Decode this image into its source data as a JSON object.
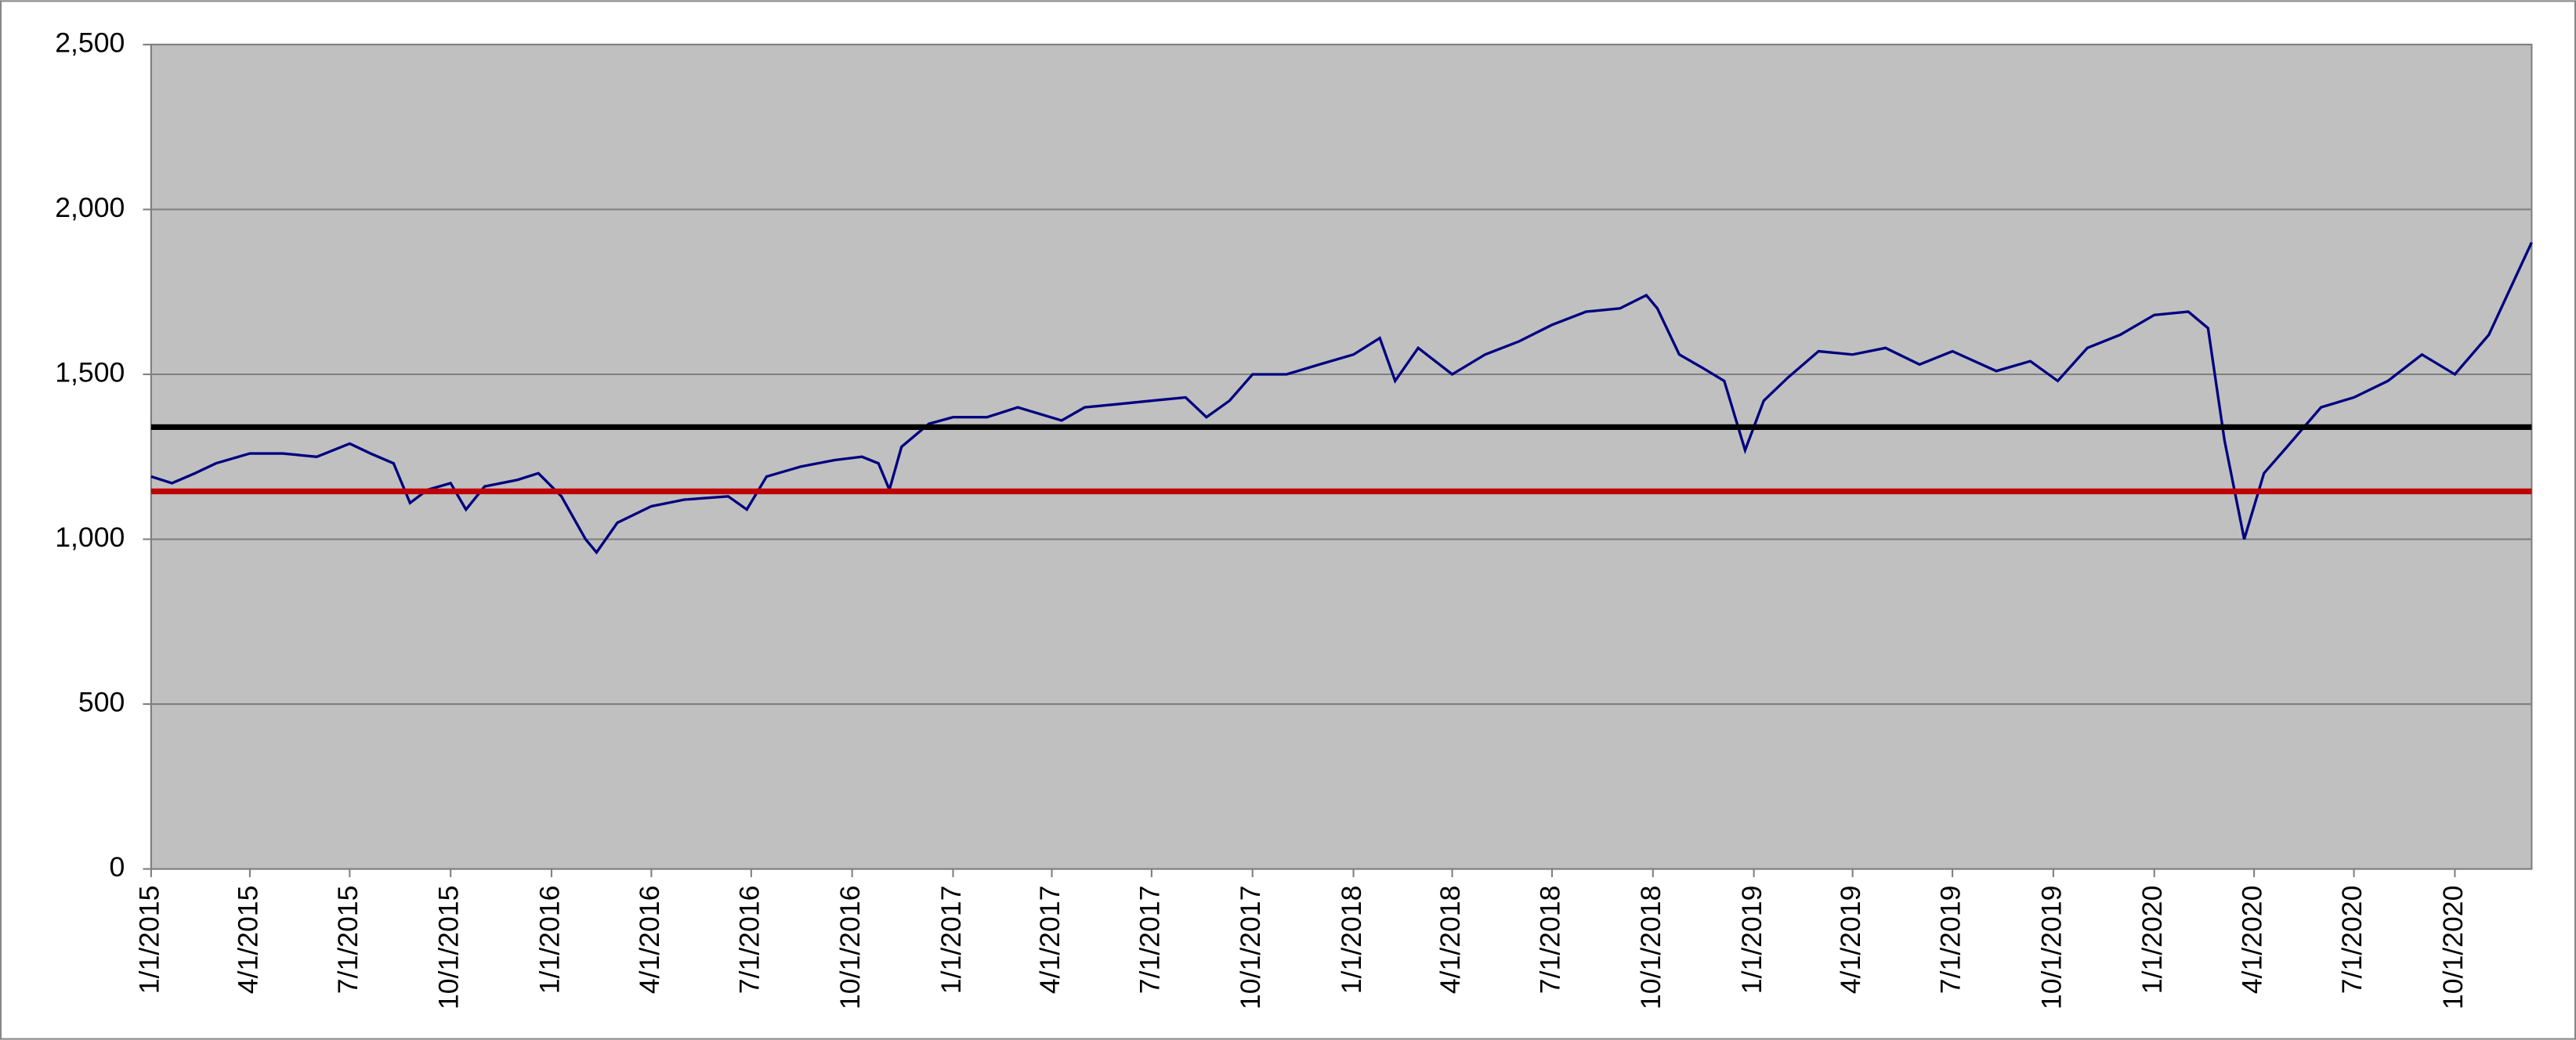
{
  "chart_data": {
    "type": "line",
    "x": [
      "1/1/2015",
      "1/20/2015",
      "2/10/2015",
      "3/1/2015",
      "4/1/2015",
      "5/1/2015",
      "6/1/2015",
      "7/1/2015",
      "7/20/2015",
      "8/10/2015",
      "8/25/2015",
      "9/10/2015",
      "10/1/2015",
      "10/15/2015",
      "11/1/2015",
      "12/1/2015",
      "12/20/2015",
      "1/10/2016",
      "2/1/2016",
      "2/11/2016",
      "3/1/2016",
      "4/1/2016",
      "5/1/2016",
      "6/10/2016",
      "6/27/2016",
      "7/15/2016",
      "8/15/2016",
      "9/15/2016",
      "10/10/2016",
      "10/25/2016",
      "11/4/2016",
      "11/15/2016",
      "12/10/2016",
      "1/1/2017",
      "2/1/2017",
      "3/1/2017",
      "4/10/2017",
      "5/1/2017",
      "6/1/2017",
      "7/1/2017",
      "8/1/2017",
      "8/20/2017",
      "9/10/2017",
      "10/1/2017",
      "11/1/2017",
      "12/1/2017",
      "1/1/2018",
      "1/25/2018",
      "2/8/2018",
      "3/1/2018",
      "4/1/2018",
      "5/1/2018",
      "6/1/2018",
      "7/1/2018",
      "8/1/2018",
      "9/1/2018",
      "9/25/2018",
      "10/5/2018",
      "10/25/2018",
      "11/15/2018",
      "12/5/2018",
      "12/24/2018",
      "1/10/2019",
      "2/1/2019",
      "3/1/2019",
      "4/1/2019",
      "5/1/2019",
      "6/1/2019",
      "7/1/2019",
      "8/10/2019",
      "9/10/2019",
      "10/5/2019",
      "11/1/2019",
      "12/1/2019",
      "1/1/2020",
      "2/1/2020",
      "2/19/2020",
      "3/5/2020",
      "3/23/2020",
      "4/10/2020",
      "5/1/2020",
      "6/1/2020",
      "7/1/2020",
      "8/1/2020",
      "9/1/2020",
      "10/1/2020",
      "11/1/2020",
      "12/10/2020"
    ],
    "series": [
      {
        "color": "#000080",
        "values": [
          1190,
          1170,
          1200,
          1230,
          1260,
          1260,
          1250,
          1290,
          1260,
          1230,
          1110,
          1150,
          1170,
          1090,
          1160,
          1180,
          1200,
          1130,
          1000,
          960,
          1050,
          1100,
          1120,
          1130,
          1090,
          1190,
          1220,
          1240,
          1250,
          1230,
          1150,
          1280,
          1350,
          1370,
          1370,
          1400,
          1360,
          1400,
          1410,
          1420,
          1430,
          1370,
          1420,
          1500,
          1500,
          1530,
          1560,
          1610,
          1480,
          1580,
          1500,
          1560,
          1600,
          1650,
          1690,
          1700,
          1740,
          1700,
          1560,
          1520,
          1480,
          1270,
          1420,
          1490,
          1570,
          1560,
          1580,
          1530,
          1570,
          1510,
          1540,
          1480,
          1580,
          1620,
          1680,
          1690,
          1640,
          1300,
          1000,
          1200,
          1280,
          1400,
          1430,
          1480,
          1560,
          1500,
          1620,
          1900
        ]
      }
    ],
    "reference_lines": [
      {
        "value": 1340,
        "color": "#000000"
      },
      {
        "value": 1145,
        "color": "#c00000"
      }
    ],
    "xlim": [
      "1/1/2015",
      "12/10/2020"
    ],
    "xticks": [
      "1/1/2015",
      "4/1/2015",
      "7/1/2015",
      "10/1/2015",
      "1/1/2016",
      "4/1/2016",
      "7/1/2016",
      "10/1/2016",
      "1/1/2017",
      "4/1/2017",
      "7/1/2017",
      "10/1/2017",
      "1/1/2018",
      "4/1/2018",
      "7/1/2018",
      "10/1/2018",
      "1/1/2019",
      "4/1/2019",
      "7/1/2019",
      "10/1/2019",
      "1/1/2020",
      "4/1/2020",
      "7/1/2020",
      "10/1/2020"
    ],
    "ylim": [
      0,
      2500
    ],
    "yticks": [
      0,
      {
        "value": 500,
        "label": "500"
      },
      {
        "value": 1000,
        "label": "1,000"
      },
      {
        "value": 1500,
        "label": "1,500"
      },
      {
        "value": 2000,
        "label": "2,000"
      },
      {
        "value": 2500,
        "label": "2,500"
      }
    ],
    "grid": true
  }
}
